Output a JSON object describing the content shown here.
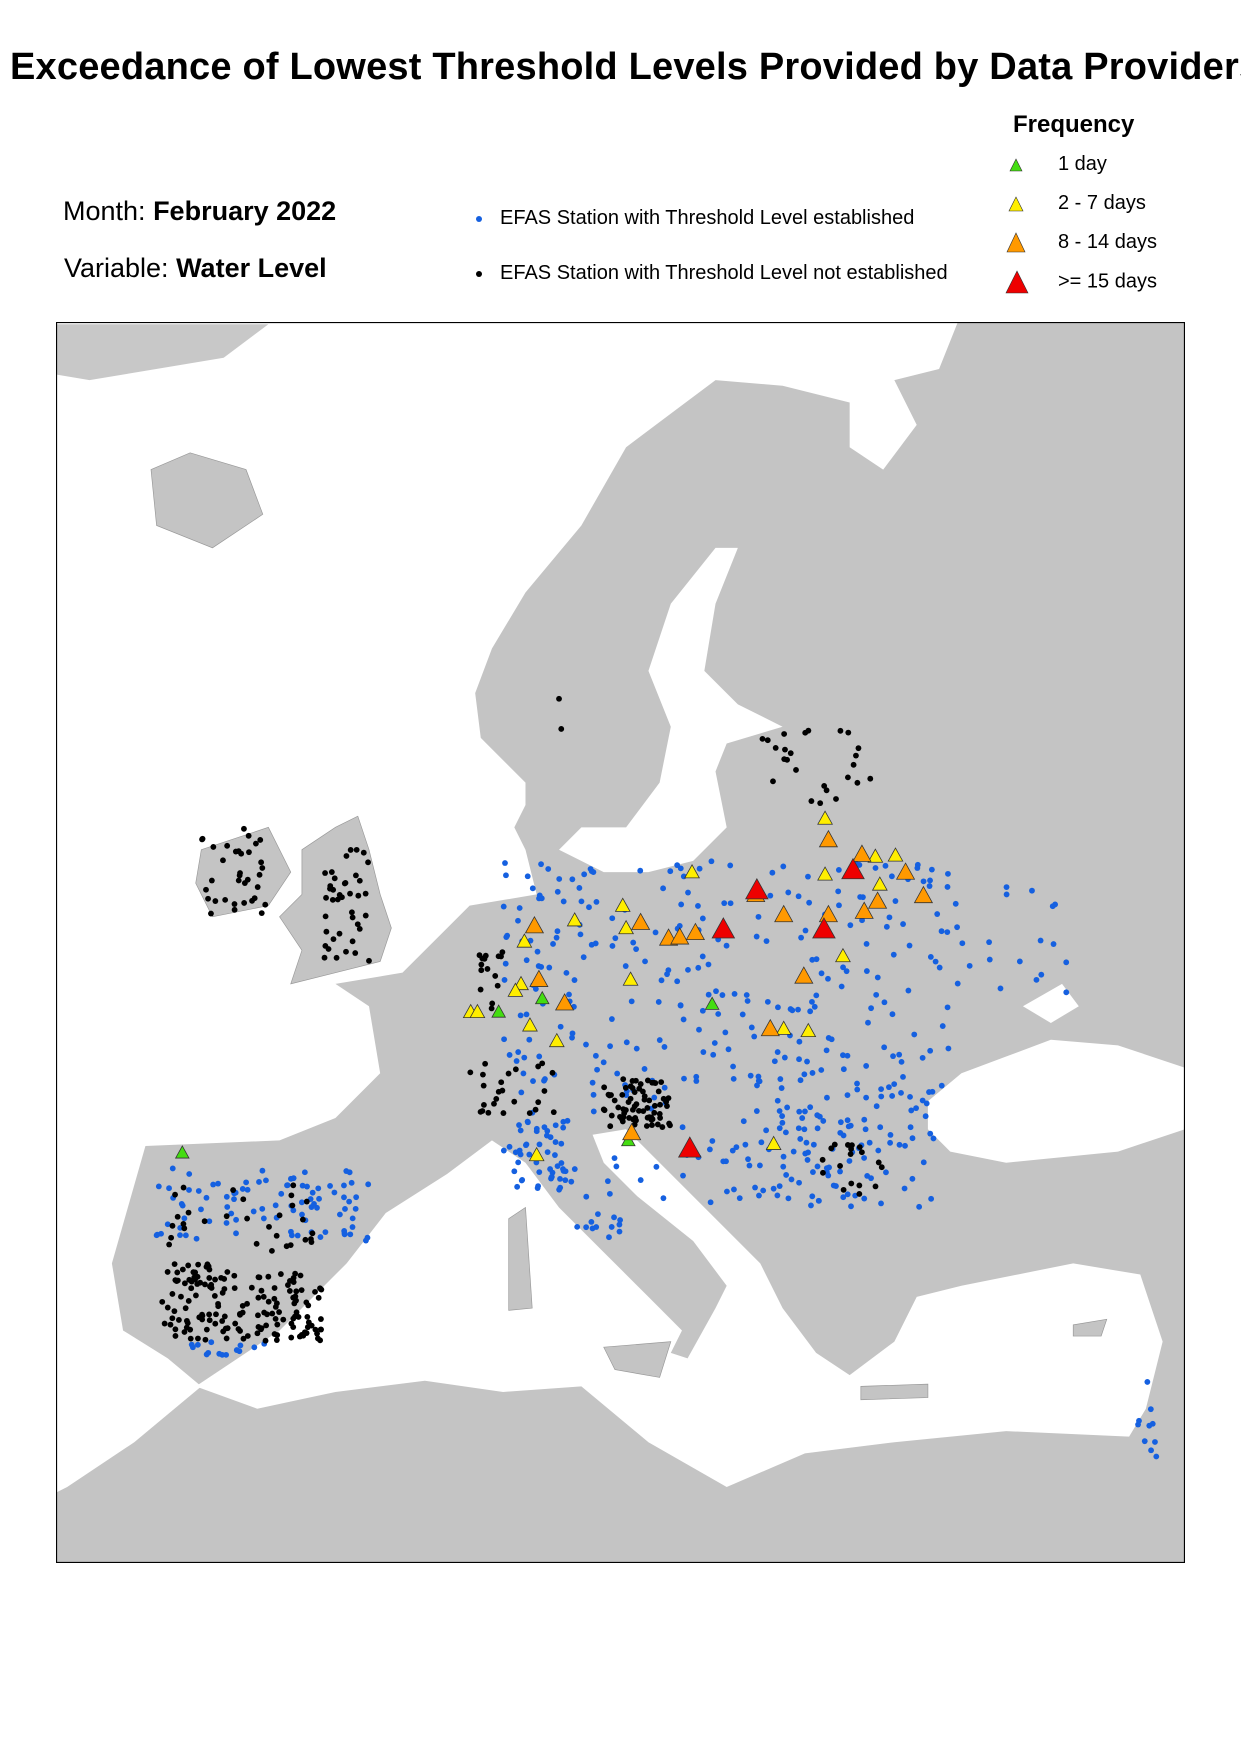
{
  "title": "Exceedance of Lowest Threshold Levels Provided by Data Providers",
  "month": {
    "label": "Month:",
    "value": "February 2022"
  },
  "variable": {
    "label": "Variable:",
    "value": "Water Level"
  },
  "station_legend": [
    {
      "label": "EFAS Station with Threshold Level established",
      "color": "#1560e0",
      "icon": "dot-icon"
    },
    {
      "label": "EFAS Station with Threshold Level not established",
      "color": "#000000",
      "icon": "dot-icon"
    }
  ],
  "frequency_legend": {
    "title": "Frequency",
    "items": [
      {
        "label": "1 day",
        "color": "#44dd11",
        "icon": "triangle-icon"
      },
      {
        "label": "2 - 7 days",
        "color": "#ffee00",
        "icon": "triangle-icon"
      },
      {
        "label": "8 - 14 days",
        "color": "#ff9900",
        "icon": "triangle-icon"
      },
      {
        "label": ">= 15 days",
        "color": "#ee0000",
        "icon": "triangle-icon"
      }
    ]
  },
  "colors": {
    "land": "#c4c4c4",
    "sea": "#ffffff",
    "frame": "#000000"
  }
}
